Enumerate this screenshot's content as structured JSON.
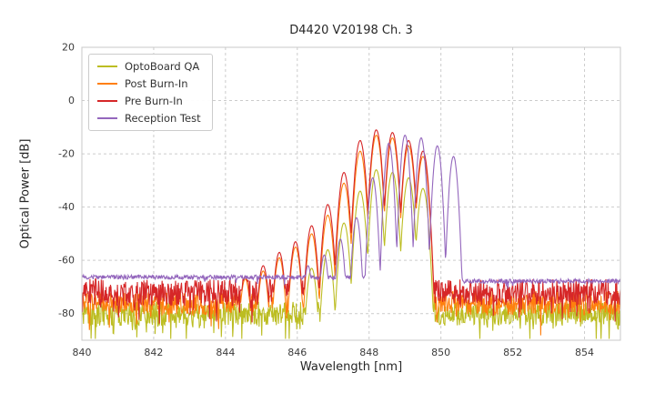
{
  "chart_data": {
    "type": "line",
    "title": "D4420 V20198 Ch. 3",
    "xlabel": "Wavelength [nm]",
    "ylabel": "Optical Power [dB]",
    "xlim": [
      840,
      855
    ],
    "ylim": [
      -90,
      20
    ],
    "xticks": [
      840,
      842,
      844,
      846,
      848,
      850,
      852,
      854
    ],
    "yticks": [
      20,
      0,
      -20,
      -40,
      -60,
      -80
    ],
    "grid_color": "#cccccc",
    "legend_position": "upper-left",
    "series": [
      {
        "name": "OptoBoard QA",
        "color": "#bcbd22",
        "noise_floor": -80,
        "noise_amp": 9,
        "spike_prob": 0.1,
        "spike_depth": 10,
        "falloff": 570,
        "peaks": [
          [
            846.4,
            -63
          ],
          [
            846.85,
            -56
          ],
          [
            847.3,
            -46
          ],
          [
            847.75,
            -34
          ],
          [
            848.2,
            -26
          ],
          [
            848.65,
            -27
          ],
          [
            849.1,
            -29
          ],
          [
            849.5,
            -33
          ]
        ]
      },
      {
        "name": "Post Burn-In",
        "color": "#ff7f0e",
        "noise_floor": -76,
        "noise_amp": 9,
        "spike_prob": 0.07,
        "spike_depth": 8,
        "falloff": 570,
        "peaks": [
          [
            844.55,
            -67
          ],
          [
            845.05,
            -64
          ],
          [
            845.5,
            -59
          ],
          [
            845.95,
            -55
          ],
          [
            846.4,
            -50
          ],
          [
            846.85,
            -43
          ],
          [
            847.3,
            -31
          ],
          [
            847.75,
            -19
          ],
          [
            848.2,
            -13
          ],
          [
            848.65,
            -14
          ],
          [
            849.1,
            -17
          ],
          [
            849.5,
            -21
          ]
        ]
      },
      {
        "name": "Pre Burn-In",
        "color": "#d62728",
        "noise_floor": -72,
        "noise_amp": 10,
        "spike_prob": 0.07,
        "spike_depth": 9,
        "falloff": 570,
        "peaks": [
          [
            844.55,
            -66
          ],
          [
            845.05,
            -62
          ],
          [
            845.5,
            -57
          ],
          [
            845.95,
            -53
          ],
          [
            846.4,
            -47
          ],
          [
            846.85,
            -39
          ],
          [
            847.3,
            -27
          ],
          [
            847.75,
            -15
          ],
          [
            848.2,
            -11
          ],
          [
            848.65,
            -12
          ],
          [
            849.1,
            -15
          ],
          [
            849.5,
            -19
          ]
        ]
      },
      {
        "name": "Reception Test",
        "color": "#9467bd",
        "noise_floor": -66.3,
        "noise_floor_right": -67.8,
        "noise_amp": 1.6,
        "spike_prob": 0.02,
        "spike_depth": 3,
        "falloff": 830,
        "peaks": [
          [
            846.3,
            -62
          ],
          [
            846.75,
            -58
          ],
          [
            847.2,
            -52
          ],
          [
            847.65,
            -44
          ],
          [
            848.1,
            -29
          ],
          [
            848.55,
            -16
          ],
          [
            849.0,
            -13
          ],
          [
            849.45,
            -14
          ],
          [
            849.9,
            -17
          ],
          [
            850.35,
            -21
          ]
        ]
      }
    ]
  }
}
